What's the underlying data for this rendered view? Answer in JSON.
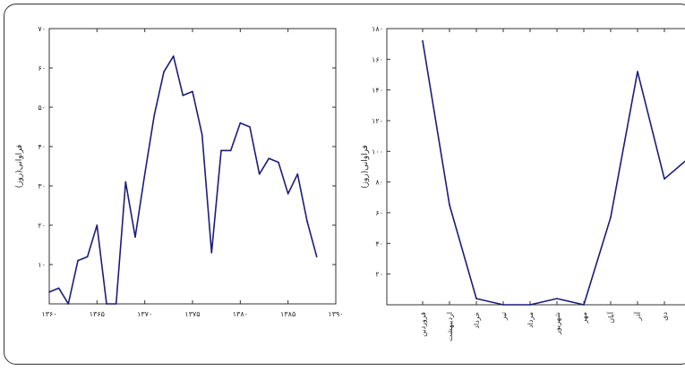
{
  "chart_data": [
    {
      "type": "line",
      "ylabel": "فراوانی(روز)",
      "xlim": [
        1360,
        1388
      ],
      "ylim": [
        0,
        70
      ],
      "x_ticks": [
        1360,
        1365,
        1370,
        1375,
        1380,
        1385,
        1390
      ],
      "x_tick_labels": [
        "۱۳۶۰",
        "۱۳۶۵",
        "۱۳۷۰",
        "۱۳۷۵",
        "۱۳۸۰",
        "۱۳۸۵",
        "۱۳۹۰"
      ],
      "y_ticks": [
        0,
        10,
        20,
        30,
        40,
        50,
        60,
        70
      ],
      "y_tick_labels": [
        "",
        "۱۰",
        "۲۰",
        "۳۰",
        "۴۰",
        "۵۰",
        "۶۰",
        "۷۰"
      ],
      "x": [
        1360,
        1361,
        1362,
        1363,
        1364,
        1365,
        1366,
        1367,
        1368,
        1369,
        1370,
        1371,
        1372,
        1373,
        1374,
        1375,
        1376,
        1377,
        1378,
        1379,
        1380,
        1381,
        1382,
        1383,
        1384,
        1385,
        1386,
        1387,
        1388
      ],
      "values": [
        3,
        4,
        0,
        11,
        12,
        20,
        0,
        0,
        31,
        17,
        33,
        48,
        59,
        63,
        53,
        54,
        43,
        13,
        39,
        39,
        46,
        45,
        33,
        37,
        36,
        28,
        33,
        21,
        12
      ],
      "color": "#1c1c7a"
    },
    {
      "type": "line",
      "ylabel": "فراوانی(روز)",
      "ylim": [
        0,
        180
      ],
      "y_ticks": [
        0,
        20,
        40,
        60,
        80,
        100,
        120,
        140,
        160,
        180
      ],
      "y_tick_labels": [
        "",
        "۲۰",
        "۴۰",
        "۶۰",
        "۸۰",
        "۱۰۰",
        "۱۲۰",
        "۱۴۰",
        "۱۶۰",
        "۱۸۰"
      ],
      "categories": [
        "فروردین",
        "اردیبهشت",
        "خرداد",
        "تیر",
        "مرداد",
        "شهریور",
        "مهر",
        "آبان",
        "آذر",
        "دی",
        "بهمن",
        "اسفند"
      ],
      "values": [
        172,
        65,
        4,
        0,
        0,
        4,
        0,
        57,
        152,
        82,
        97,
        123
      ],
      "color": "#1c1c7a"
    }
  ]
}
